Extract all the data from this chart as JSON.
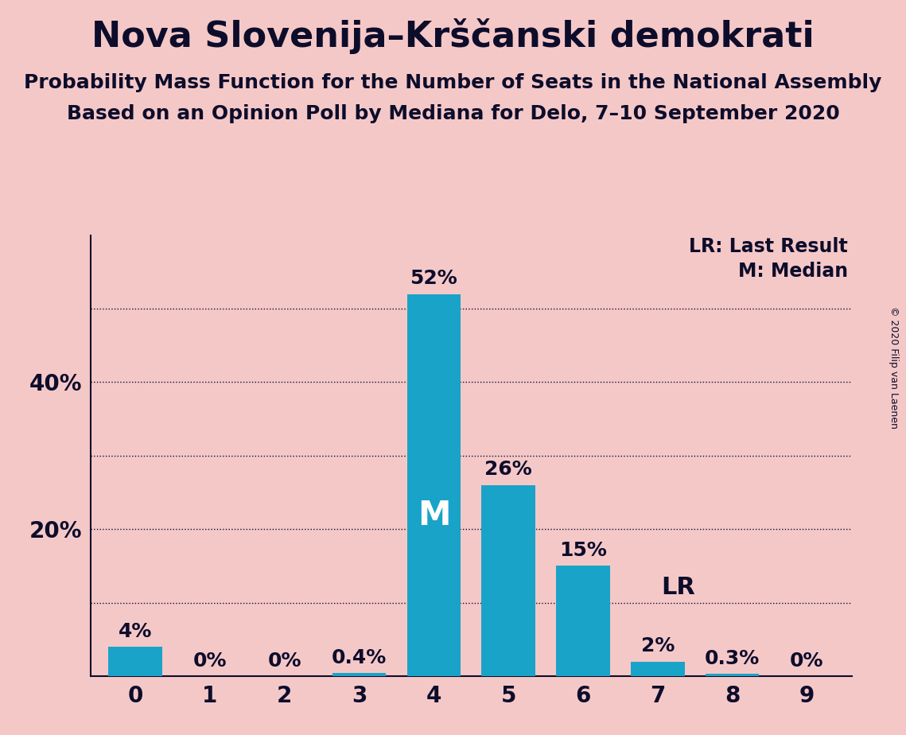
{
  "title": "Nova Slovenija–Krščanski demokrati",
  "subtitle1": "Probability Mass Function for the Number of Seats in the National Assembly",
  "subtitle2": "Based on an Opinion Poll by Mediana for Delo, 7–10 September 2020",
  "copyright": "© 2020 Filip van Laenen",
  "categories": [
    0,
    1,
    2,
    3,
    4,
    5,
    6,
    7,
    8,
    9
  ],
  "values": [
    4.0,
    0.0,
    0.0,
    0.4,
    52.0,
    26.0,
    15.0,
    2.0,
    0.3,
    0.0
  ],
  "labels": [
    "4%",
    "0%",
    "0%",
    "0.4%",
    "52%",
    "26%",
    "15%",
    "2%",
    "0.3%",
    "0%"
  ],
  "bar_color": "#1aa3c8",
  "background_color": "#f5c8c8",
  "median_seat": 4,
  "last_result_seat": 7,
  "median_label": "M",
  "lr_label": "LR",
  "lr_legend": "LR: Last Result",
  "m_legend": "M: Median",
  "ylim": [
    0,
    60
  ],
  "ytick_positions": [
    20,
    40
  ],
  "ytick_labels": [
    "20%",
    "40%"
  ],
  "dotted_lines": [
    10,
    30,
    50
  ],
  "all_gridlines": [
    10,
    20,
    30,
    40,
    50
  ],
  "title_fontsize": 32,
  "subtitle_fontsize": 18,
  "label_fontsize": 18,
  "tick_fontsize": 20,
  "legend_fontsize": 17,
  "median_label_fontsize": 30,
  "lr_label_fontsize": 22,
  "copyright_fontsize": 9
}
